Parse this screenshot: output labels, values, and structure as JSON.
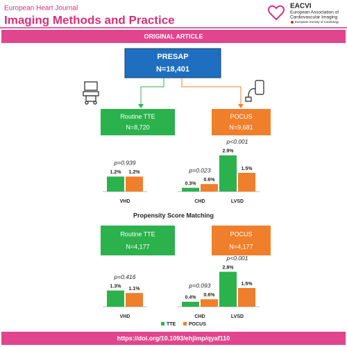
{
  "header": {
    "journal": "European Heart Journal",
    "title": "Imaging Methods and Practice",
    "logo": {
      "name": "EACVI",
      "lines": [
        "European Association of",
        "Cardiovascular Imaging"
      ],
      "society": "European Society of Cardiology"
    }
  },
  "banner": "ORIGINAL ARTICLE",
  "root": {
    "title": "PRESAP",
    "count": "N=18,401"
  },
  "groups": [
    {
      "label": "Routine TTE",
      "count": "N=8,720",
      "color": "#2bb24c"
    },
    {
      "label": "POCUS",
      "count": "N=9,681",
      "color": "#f07f2b"
    }
  ],
  "psm_title": "Propensity Score Matching",
  "psm_groups": [
    {
      "label": "Routine TTE",
      "count": "N=4,177",
      "color": "#2bb24c"
    },
    {
      "label": "POCUS",
      "count": "N=4,177",
      "color": "#f07f2b"
    }
  ],
  "chart_data": [
    {
      "type": "bar",
      "categories": [
        "VHD",
        "CHD",
        "LVSD"
      ],
      "annotations": [
        "p=0.939",
        "p=0.023",
        "p<0.001"
      ],
      "series": [
        {
          "color": "#2bb24c",
          "values": [
            1.2,
            0.3,
            2.9
          ],
          "value_labels": [
            "1.2%",
            "0.3%",
            "2.9%"
          ]
        },
        {
          "color": "#f07f2b",
          "values": [
            1.2,
            0.6,
            1.5
          ],
          "value_labels": [
            "1.2%",
            "0.6%",
            "1.5%"
          ]
        }
      ]
    },
    {
      "type": "bar",
      "categories": [
        "VHD",
        "CHD",
        "LVSD"
      ],
      "annotations": [
        "p=0.416",
        "p=0.093",
        "p<0.001"
      ],
      "series": [
        {
          "color": "#2bb24c",
          "values": [
            1.3,
            0.4,
            2.8
          ],
          "value_labels": [
            "1.3%",
            "0.4%",
            "2.8%"
          ]
        },
        {
          "color": "#f07f2b",
          "values": [
            1.1,
            0.6,
            1.5
          ],
          "value_labels": [
            "1.1%",
            "0.6%",
            "1.5%"
          ]
        }
      ]
    }
  ],
  "legend": [
    {
      "name": "TTE",
      "color": "#2bb24c"
    },
    {
      "name": "POCUS",
      "color": "#f07f2b"
    }
  ],
  "doi": "https://doi.org/10.1093/ehjimp/qyaf110"
}
